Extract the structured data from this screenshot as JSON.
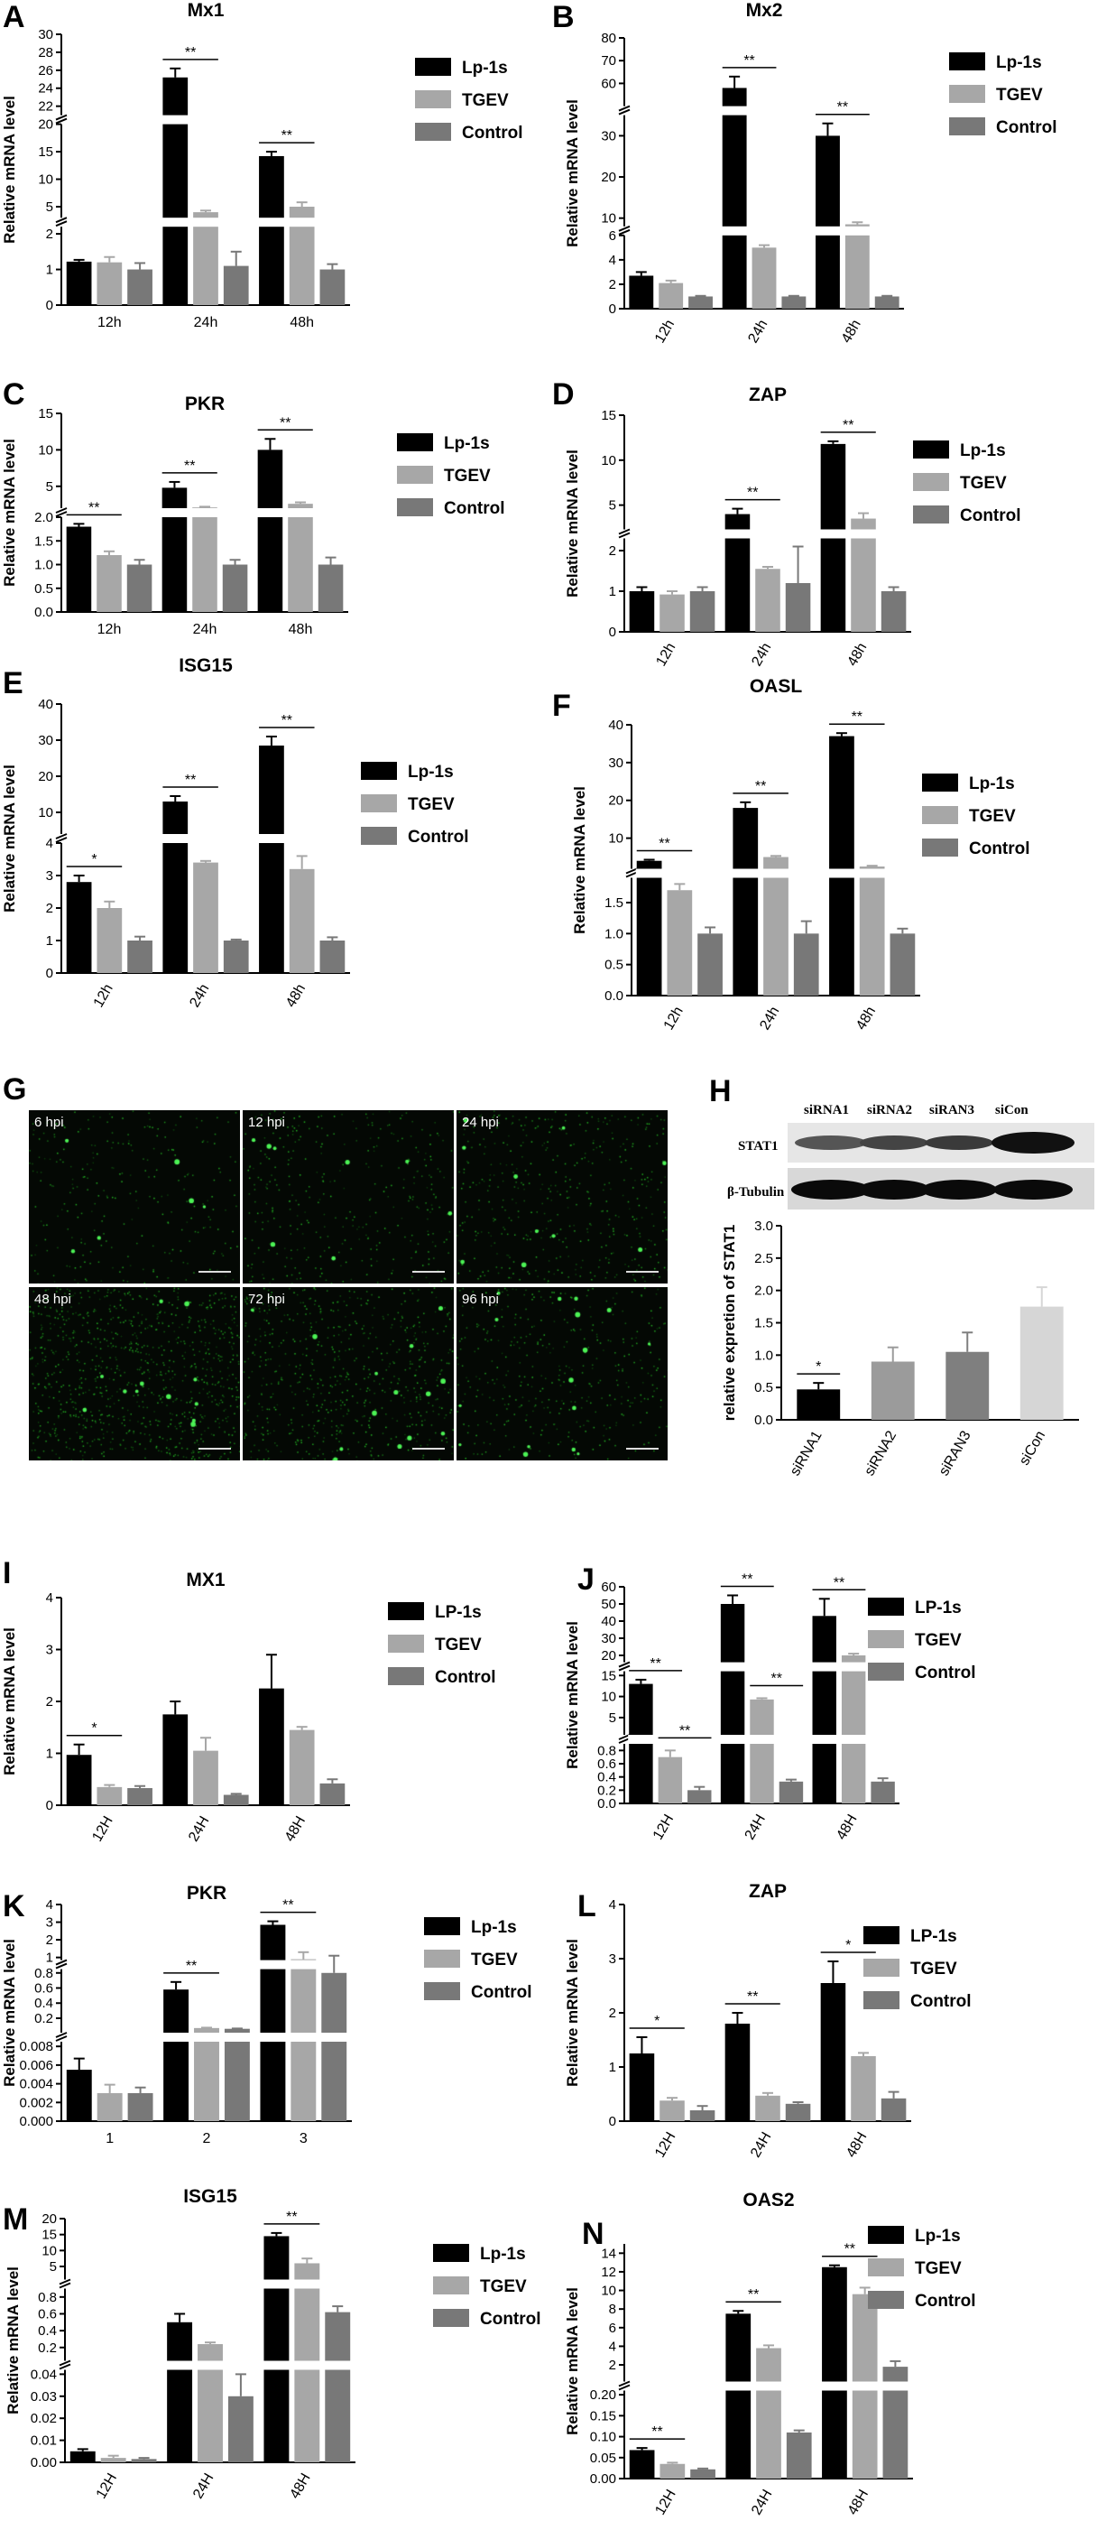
{
  "legend_colors": [
    "#000000",
    "#a7a7a7",
    "#787878"
  ],
  "figure_h": {
    "blot_headers": [
      "siRNA1",
      "siRNA2",
      "siRAN3",
      "siCon"
    ],
    "blot_rows": [
      "STAT1",
      "β-Tubulin"
    ]
  },
  "figure_g": {
    "tiles": [
      "6 hpi",
      "12 hpi",
      "24 hpi",
      "48 hpi",
      "72 hpi",
      "96 hpi"
    ]
  },
  "chart_data": [
    {
      "letter": "A",
      "type": "bar",
      "title": "Mx1",
      "ylabel": "Relative mRNA level",
      "categories": [
        "12h",
        "24h",
        "48h"
      ],
      "series": [
        {
          "name": "Lp-1s",
          "values": [
            1.22,
            25.2,
            14.2
          ],
          "errors": [
            0.05,
            1.0,
            0.8
          ]
        },
        {
          "name": "TGEV",
          "values": [
            1.2,
            4.0,
            5.0
          ],
          "errors": [
            0.15,
            0.3,
            0.8
          ]
        },
        {
          "name": "Control",
          "values": [
            1.0,
            1.1,
            1.0
          ],
          "errors": [
            0.18,
            0.4,
            0.15
          ]
        }
      ],
      "segments": [
        {
          "range": [
            0,
            2.2
          ],
          "ticks": [
            0,
            1,
            2
          ]
        },
        {
          "range": [
            3,
            20
          ],
          "ticks": [
            5,
            10,
            15,
            20
          ]
        },
        {
          "range": [
            21,
            30
          ],
          "ticks": [
            22,
            24,
            26,
            28,
            30
          ]
        }
      ],
      "significance": [
        {
          "category": "24h",
          "label": "**"
        },
        {
          "category": "48h",
          "label": "**"
        }
      ]
    },
    {
      "letter": "B",
      "type": "bar",
      "title": "Mx2",
      "ylabel": "Relative mRNA level",
      "categories": [
        "12h",
        "24h",
        "48h"
      ],
      "series": [
        {
          "name": "Lp-1s",
          "values": [
            2.7,
            58,
            30
          ],
          "errors": [
            0.3,
            5,
            3
          ]
        },
        {
          "name": "TGEV",
          "values": [
            2.1,
            5.0,
            8.5
          ],
          "errors": [
            0.2,
            0.2,
            0.5
          ]
        },
        {
          "name": "Control",
          "values": [
            1.0,
            1.0,
            1.0
          ],
          "errors": [
            0.05,
            0.05,
            0.05
          ]
        }
      ],
      "segments": [
        {
          "range": [
            0,
            6
          ],
          "ticks": [
            0,
            2,
            4,
            6
          ]
        },
        {
          "range": [
            8,
            35
          ],
          "ticks": [
            10,
            20,
            30
          ]
        },
        {
          "range": [
            50,
            80
          ],
          "ticks": [
            60,
            70,
            80
          ]
        }
      ],
      "significance": [
        {
          "category": "24h",
          "label": "**"
        },
        {
          "category": "48h",
          "label": "**"
        }
      ]
    },
    {
      "letter": "C",
      "type": "bar",
      "title": "PKR",
      "ylabel": "Relative mRNA level",
      "categories": [
        "12h",
        "24h",
        "48h"
      ],
      "series": [
        {
          "name": "Lp-1s",
          "values": [
            1.8,
            4.8,
            10
          ],
          "errors": [
            0.06,
            0.8,
            1.5
          ]
        },
        {
          "name": "TGEV",
          "values": [
            1.2,
            2.1,
            2.6
          ],
          "errors": [
            0.08,
            0.1,
            0.2
          ]
        },
        {
          "name": "Control",
          "values": [
            1.0,
            1.0,
            1.0
          ],
          "errors": [
            0.1,
            0.1,
            0.15
          ]
        }
      ],
      "segments": [
        {
          "range": [
            0,
            2.0
          ],
          "ticks": [
            0.0,
            0.5,
            1.0,
            1.5,
            2.0
          ]
        },
        {
          "range": [
            2.0,
            15
          ],
          "ticks": [
            5,
            10,
            15
          ]
        }
      ],
      "significance": [
        {
          "category": "12h",
          "label": "**"
        },
        {
          "category": "24h",
          "label": "**"
        },
        {
          "category": "48h",
          "label": "**"
        }
      ]
    },
    {
      "letter": "D",
      "type": "bar",
      "title": "ZAP",
      "ylabel": "Relative mRNA level",
      "categories": [
        "12h",
        "24h",
        "48h"
      ],
      "series": [
        {
          "name": "Lp-1s",
          "values": [
            1.0,
            4.0,
            11.8
          ],
          "errors": [
            0.1,
            0.6,
            0.3
          ]
        },
        {
          "name": "TGEV",
          "values": [
            0.92,
            1.55,
            3.5
          ],
          "errors": [
            0.08,
            0.05,
            0.6
          ]
        },
        {
          "name": "Control",
          "values": [
            1.0,
            1.2,
            1.0
          ],
          "errors": [
            0.1,
            0.9,
            0.1
          ]
        }
      ],
      "segments": [
        {
          "range": [
            0,
            2.3
          ],
          "ticks": [
            0,
            1,
            2
          ]
        },
        {
          "range": [
            2.3,
            15
          ],
          "ticks": [
            5,
            10,
            15
          ]
        }
      ],
      "significance": [
        {
          "category": "24h",
          "label": "**"
        },
        {
          "category": "48h",
          "label": "**"
        }
      ]
    },
    {
      "letter": "E",
      "type": "bar",
      "title": "ISG15",
      "ylabel": "Relative mRNA level",
      "categories": [
        "12h",
        "24h",
        "48h"
      ],
      "series": [
        {
          "name": "Lp-1s",
          "values": [
            2.8,
            13,
            28.5
          ],
          "errors": [
            0.2,
            1.5,
            2.5
          ]
        },
        {
          "name": "TGEV",
          "values": [
            2.0,
            3.4,
            3.2
          ],
          "errors": [
            0.2,
            0.05,
            0.4
          ]
        },
        {
          "name": "Control",
          "values": [
            1.0,
            1.0,
            1.0
          ],
          "errors": [
            0.12,
            0.03,
            0.1
          ]
        }
      ],
      "segments": [
        {
          "range": [
            0,
            4
          ],
          "ticks": [
            0,
            1,
            2,
            3,
            4
          ]
        },
        {
          "range": [
            4,
            40
          ],
          "ticks": [
            10,
            20,
            30,
            40
          ]
        }
      ],
      "significance": [
        {
          "category": "12h",
          "label": "*"
        },
        {
          "category": "24h",
          "label": "**"
        },
        {
          "category": "48h",
          "label": "**"
        }
      ]
    },
    {
      "letter": "F",
      "type": "bar",
      "title": "OASL",
      "ylabel": "Relative mRNA level",
      "categories": [
        "12h",
        "24h",
        "48h"
      ],
      "series": [
        {
          "name": "Lp-1s",
          "values": [
            4,
            18,
            37
          ],
          "errors": [
            0.3,
            1.5,
            0.8
          ]
        },
        {
          "name": "TGEV",
          "values": [
            1.7,
            5,
            2.5
          ],
          "errors": [
            0.1,
            0.3,
            0.2
          ]
        },
        {
          "name": "Control",
          "values": [
            1.0,
            1.0,
            1.0
          ],
          "errors": [
            0.1,
            0.2,
            0.08
          ]
        }
      ],
      "segments": [
        {
          "range": [
            0,
            1.9
          ],
          "ticks": [
            0.0,
            0.5,
            1.0,
            1.5
          ]
        },
        {
          "range": [
            1.9,
            40
          ],
          "ticks": [
            10,
            20,
            30,
            40
          ]
        }
      ],
      "significance": [
        {
          "category": "12h",
          "label": "**"
        },
        {
          "category": "24h",
          "label": "**"
        },
        {
          "category": "48h",
          "label": "**"
        }
      ]
    },
    {
      "letter": "H",
      "type": "bar",
      "title": "",
      "ylabel": "relative expretion of STAT1",
      "categories": [
        "siRNA1",
        "siRNA2",
        "siRAN3",
        "siCon"
      ],
      "series": [
        {
          "name": "",
          "values": [
            0.47,
            0.9,
            1.05,
            1.75
          ],
          "errors": [
            0.1,
            0.22,
            0.3,
            0.3
          ],
          "colors": [
            "#000000",
            "#9b9b9b",
            "#7f7f7f",
            "#d6d6d6"
          ]
        }
      ],
      "segments": [
        {
          "range": [
            0,
            3.0
          ],
          "ticks": [
            0.0,
            0.5,
            1.0,
            1.5,
            2.0,
            2.5,
            3.0
          ]
        }
      ],
      "significance": [
        {
          "category": "siRNA1",
          "label": "*"
        }
      ]
    },
    {
      "letter": "I",
      "type": "bar",
      "title": "MX1",
      "ylabel": "Relative mRNA level",
      "categories": [
        "12H",
        "24H",
        "48H"
      ],
      "series": [
        {
          "name": "LP-1s",
          "values": [
            0.97,
            1.75,
            2.25
          ],
          "errors": [
            0.2,
            0.25,
            0.65
          ]
        },
        {
          "name": "TGEV",
          "values": [
            0.35,
            1.05,
            1.45
          ],
          "errors": [
            0.04,
            0.25,
            0.06
          ]
        },
        {
          "name": "Control",
          "values": [
            0.33,
            0.2,
            0.42
          ],
          "errors": [
            0.04,
            0.02,
            0.08
          ]
        }
      ],
      "segments": [
        {
          "range": [
            0,
            4
          ],
          "ticks": [
            0,
            1,
            2,
            3,
            4
          ]
        }
      ],
      "significance": [
        {
          "category": "12H",
          "label": "*"
        }
      ]
    },
    {
      "letter": "J",
      "type": "bar",
      "title": "",
      "ylabel": "Relative mRNA level",
      "categories": [
        "12H",
        "24H",
        "48H"
      ],
      "series": [
        {
          "name": "LP-1s",
          "values": [
            13,
            50,
            43
          ],
          "errors": [
            1,
            5,
            10
          ]
        },
        {
          "name": "TGEV",
          "values": [
            0.7,
            9.3,
            20
          ],
          "errors": [
            0.1,
            0.3,
            1
          ]
        },
        {
          "name": "Control",
          "values": [
            0.2,
            0.33,
            0.33
          ],
          "errors": [
            0.05,
            0.03,
            0.05
          ]
        }
      ],
      "segments": [
        {
          "range": [
            0,
            0.9
          ],
          "ticks": [
            0.0,
            0.2,
            0.4,
            0.6,
            0.8
          ]
        },
        {
          "range": [
            0.9,
            16
          ],
          "ticks": [
            5,
            10,
            15
          ]
        },
        {
          "range": [
            16,
            60
          ],
          "ticks": [
            20,
            30,
            40,
            50,
            60
          ]
        }
      ],
      "significance": [
        {
          "category": "12H",
          "label": "**"
        },
        {
          "category": "12H",
          "label": "**",
          "low": true
        },
        {
          "category": "24H",
          "label": "**"
        },
        {
          "category": "24H",
          "label": "**",
          "low": true
        },
        {
          "category": "48H",
          "label": "**"
        }
      ]
    },
    {
      "letter": "K",
      "type": "bar",
      "title": "PKR",
      "ylabel": "Relative mRNA level",
      "categories": [
        "1",
        "2",
        "3"
      ],
      "series": [
        {
          "name": "Lp-1s",
          "values": [
            0.0055,
            0.58,
            2.85
          ],
          "errors": [
            0.0012,
            0.1,
            0.2
          ]
        },
        {
          "name": "TGEV",
          "values": [
            0.003,
            0.07,
            0.9
          ],
          "errors": [
            0.0009,
            0.005,
            0.4
          ]
        },
        {
          "name": "Control",
          "values": [
            0.003,
            0.06,
            0.8
          ],
          "errors": [
            0.0006,
            0.004,
            0.3
          ]
        }
      ],
      "segments": [
        {
          "range": [
            0,
            0.0085
          ],
          "ticks": [
            0.0,
            0.002,
            0.004,
            0.006,
            0.008
          ]
        },
        {
          "range": [
            0.0085,
            0.85
          ],
          "ticks": [
            0.2,
            0.4,
            0.6,
            0.8
          ]
        },
        {
          "range": [
            0.85,
            4
          ],
          "ticks": [
            1,
            2,
            3,
            4
          ]
        }
      ],
      "significance": [
        {
          "category": "2",
          "label": "**"
        },
        {
          "category": "3",
          "label": "**"
        }
      ]
    },
    {
      "letter": "L",
      "type": "bar",
      "title": "ZAP",
      "ylabel": "Relative mRNA level",
      "categories": [
        "12H",
        "24H",
        "48H"
      ],
      "series": [
        {
          "name": "LP-1s",
          "values": [
            1.25,
            1.8,
            2.55
          ],
          "errors": [
            0.3,
            0.2,
            0.4
          ]
        },
        {
          "name": "TGEV",
          "values": [
            0.38,
            0.47,
            1.2
          ],
          "errors": [
            0.05,
            0.05,
            0.06
          ]
        },
        {
          "name": "Control",
          "values": [
            0.2,
            0.32,
            0.42
          ],
          "errors": [
            0.08,
            0.03,
            0.12
          ]
        }
      ],
      "segments": [
        {
          "range": [
            0,
            4
          ],
          "ticks": [
            0,
            1,
            2,
            3,
            4
          ]
        }
      ],
      "significance": [
        {
          "category": "12H",
          "label": "*"
        },
        {
          "category": "24H",
          "label": "**"
        },
        {
          "category": "48H",
          "label": "*"
        }
      ]
    },
    {
      "letter": "M",
      "type": "bar",
      "title": "ISG15",
      "ylabel": "Relative mRNA level",
      "categories": [
        "12H",
        "24H",
        "48H"
      ],
      "series": [
        {
          "name": "Lp-1s",
          "values": [
            0.005,
            0.5,
            14.5
          ],
          "errors": [
            0.001,
            0.1,
            1
          ]
        },
        {
          "name": "TGEV",
          "values": [
            0.002,
            0.24,
            6
          ],
          "errors": [
            0.001,
            0.02,
            1.5
          ]
        },
        {
          "name": "Control",
          "values": [
            0.0015,
            0.03,
            0.62
          ],
          "errors": [
            0.0005,
            0.01,
            0.07
          ]
        }
      ],
      "segments": [
        {
          "range": [
            0,
            0.042
          ],
          "ticks": [
            0.0,
            0.01,
            0.02,
            0.03,
            0.04
          ]
        },
        {
          "range": [
            0.042,
            0.9
          ],
          "ticks": [
            0.2,
            0.4,
            0.6,
            0.8
          ]
        },
        {
          "range": [
            0.9,
            20
          ],
          "ticks": [
            5,
            10,
            15,
            20
          ]
        }
      ],
      "significance": [
        {
          "category": "48H",
          "label": "**"
        }
      ]
    },
    {
      "letter": "N",
      "type": "bar",
      "title": "OAS2",
      "ylabel": "Relative mRNA level",
      "categories": [
        "12H",
        "24H",
        "48H"
      ],
      "series": [
        {
          "name": "Lp-1s",
          "values": [
            0.068,
            7.5,
            12.5
          ],
          "errors": [
            0.005,
            0.3,
            0.2
          ]
        },
        {
          "name": "TGEV",
          "values": [
            0.035,
            3.8,
            9.6
          ],
          "errors": [
            0.003,
            0.3,
            0.7
          ]
        },
        {
          "name": "Control",
          "values": [
            0.022,
            0.11,
            1.8
          ],
          "errors": [
            0.002,
            0.005,
            0.6
          ]
        }
      ],
      "segments": [
        {
          "range": [
            0,
            0.21
          ],
          "ticks": [
            0.0,
            0.05,
            0.1,
            0.15,
            0.2
          ]
        },
        {
          "range": [
            0.21,
            15
          ],
          "ticks": [
            2,
            4,
            6,
            8,
            10,
            12,
            14
          ]
        }
      ],
      "significance": [
        {
          "category": "12H",
          "label": "**"
        },
        {
          "category": "24H",
          "label": "**"
        },
        {
          "category": "48H",
          "label": "**"
        }
      ]
    }
  ]
}
